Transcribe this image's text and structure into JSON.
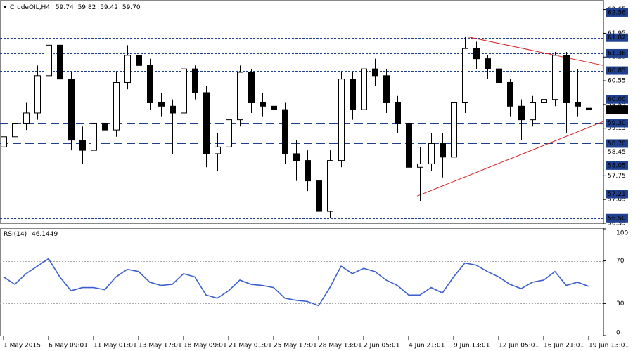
{
  "chart_data": [
    {
      "type": "candlestick",
      "title": "CrudeOIL,H4",
      "last_labels": [
        "59.74",
        "59.82",
        "59.42",
        "59.70"
      ],
      "categories": [
        "1 May 2015",
        null,
        null,
        null,
        "6 May 09:01",
        null,
        null,
        null,
        "11 May 01:01",
        null,
        null,
        null,
        "13 May 17:01",
        null,
        null,
        null,
        "18 May 09:01",
        null,
        null,
        null,
        "21 May 01:01",
        null,
        null,
        null,
        "25 May 17:01",
        null,
        null,
        null,
        "28 May 13:01",
        null,
        null,
        null,
        "2 Jun 05:01",
        null,
        null,
        null,
        "4 Jun 21:01",
        null,
        null,
        null,
        "9 Jun 13:01",
        null,
        null,
        null,
        "12 Jun 05:01",
        null,
        null,
        null,
        "16 Jun 21:01",
        null,
        null,
        null,
        "19 Jun 13:01"
      ],
      "open": [
        58.6,
        58.9,
        59.3,
        59.6,
        60.7,
        61.6,
        60.6,
        58.8,
        58.5,
        59.3,
        59.1,
        60.5,
        61.3,
        61.0,
        59.9,
        59.8,
        59.6,
        60.9,
        60.2,
        58.4,
        58.6,
        59.4,
        60.8,
        59.9,
        59.8,
        59.7,
        58.4,
        58.2,
        57.6,
        56.7,
        58.2,
        60.6,
        59.7,
        60.9,
        60.7,
        59.9,
        59.3,
        58.0,
        58.1,
        58.7,
        58.3,
        59.9,
        61.5,
        61.2,
        60.9,
        60.5,
        59.8,
        59.4,
        59.9,
        60.0,
        61.3,
        59.9,
        59.74
      ],
      "high": [
        59.3,
        59.6,
        59.9,
        61.0,
        62.6,
        61.8,
        60.8,
        59.2,
        59.6,
        59.5,
        60.8,
        61.6,
        61.9,
        61.2,
        60.2,
        60.0,
        61.1,
        61.0,
        60.4,
        59.0,
        59.7,
        61.0,
        60.9,
        60.2,
        60.0,
        59.9,
        58.8,
        58.5,
        57.9,
        58.5,
        60.8,
        60.8,
        61.5,
        61.2,
        60.9,
        60.1,
        59.5,
        58.6,
        59.0,
        59.0,
        60.2,
        61.85,
        61.7,
        61.3,
        61.0,
        60.6,
        60.0,
        60.1,
        60.3,
        61.4,
        61.4,
        60.9,
        59.82
      ],
      "low": [
        58.4,
        58.7,
        59.1,
        59.4,
        60.5,
        60.4,
        58.5,
        58.1,
        58.3,
        58.8,
        58.9,
        60.3,
        60.8,
        59.7,
        59.5,
        58.4,
        59.4,
        60.0,
        58.0,
        57.9,
        58.4,
        59.2,
        59.6,
        59.5,
        59.4,
        58.1,
        57.6,
        57.3,
        56.5,
        56.5,
        58.0,
        59.4,
        59.5,
        60.4,
        59.6,
        59.0,
        57.7,
        57.0,
        57.9,
        57.7,
        58.1,
        59.6,
        60.9,
        60.6,
        60.2,
        59.5,
        58.8,
        59.2,
        59.6,
        59.8,
        59.0,
        59.5,
        59.42
      ],
      "close": [
        58.9,
        59.3,
        59.6,
        60.7,
        61.6,
        60.6,
        58.8,
        58.5,
        59.3,
        59.1,
        60.5,
        61.3,
        61.0,
        59.9,
        59.8,
        59.6,
        60.9,
        60.2,
        58.4,
        58.6,
        59.4,
        60.8,
        59.9,
        59.8,
        59.7,
        58.4,
        58.2,
        57.6,
        56.7,
        58.2,
        60.6,
        59.7,
        60.9,
        60.7,
        59.9,
        59.3,
        58.0,
        58.1,
        58.7,
        58.3,
        59.9,
        61.5,
        61.2,
        60.9,
        60.5,
        59.8,
        59.4,
        59.9,
        60.0,
        61.3,
        59.9,
        59.8,
        59.7
      ],
      "ylim": [
        56.35,
        62.89
      ],
      "yticks": [
        56.35,
        57.05,
        57.75,
        58.45,
        59.15,
        59.85,
        60.55,
        61.25,
        61.95,
        62.65
      ],
      "levels": [
        62.56,
        61.82,
        61.36,
        60.85,
        {
          "value": 60.0,
          "label": "60.00"
        },
        {
          "value": 59.3,
          "label": "59.30",
          "dash": "long"
        },
        {
          "value": 58.7,
          "label": "58.70",
          "dash": "long"
        },
        58.05,
        57.21,
        {
          "value": 56.5,
          "label": "56.50"
        }
      ],
      "level_color": "#1f3f8f",
      "current_price": {
        "value": 59.7,
        "label": "59.70"
      },
      "trendlines": [
        {
          "from": [
            41.2,
            61.85
          ],
          "to": [
            53.45,
            61.0
          ]
        },
        {
          "from": [
            36.75,
            57.15
          ],
          "to": [
            53.45,
            59.35
          ]
        }
      ],
      "trend_color": "#d62020"
    },
    {
      "type": "line",
      "title": "RSI(14)",
      "color": "#3a5fcd",
      "values": [
        55,
        48,
        58,
        65,
        72,
        55,
        42,
        45,
        45,
        43,
        55,
        62,
        60,
        50,
        47,
        48,
        58,
        55,
        38,
        35,
        42,
        52,
        48,
        47,
        45,
        35,
        33,
        32,
        28,
        45,
        65,
        58,
        63,
        60,
        52,
        47,
        38,
        38,
        45,
        40,
        55,
        68,
        66,
        60,
        55,
        48,
        44,
        50,
        52,
        60,
        47,
        50,
        46.1449
      ],
      "ylim": [
        0,
        100
      ],
      "yticks": [
        0,
        30,
        70,
        100
      ],
      "grid_values": [
        30,
        70
      ]
    }
  ]
}
